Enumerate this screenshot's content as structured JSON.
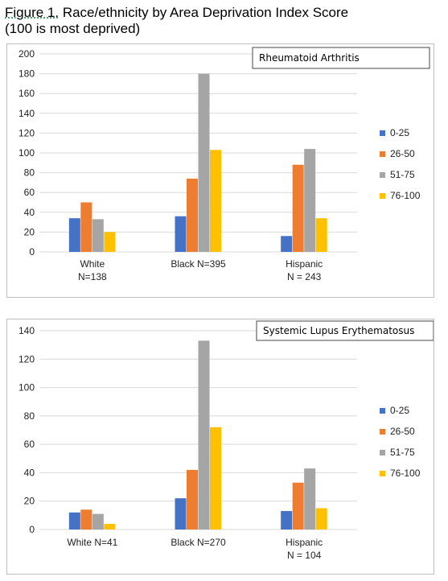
{
  "figure": {
    "title_prefix": "Figure 1.",
    "title_rest": " Race/ethnicity by Area Deprivation Index Score\n(100 is most deprived)"
  },
  "colors": {
    "0-25": "#4472c4",
    "26-50": "#ed7d31",
    "51-75": "#a5a5a5",
    "76-100": "#ffc000",
    "grid": "#d9d9d9"
  },
  "chart_data": [
    {
      "type": "bar",
      "title": "Rheumatoid Arthritis",
      "categories": [
        "White\nN=138",
        "Black N=395",
        "Hispanic\nN = 243"
      ],
      "series": [
        {
          "name": "0-25",
          "values": [
            34,
            36,
            16
          ]
        },
        {
          "name": "26-50",
          "values": [
            50,
            74,
            88
          ]
        },
        {
          "name": "51-75",
          "values": [
            33,
            180,
            104
          ]
        },
        {
          "name": "76-100",
          "values": [
            20,
            103,
            34
          ]
        }
      ],
      "ylim": [
        0,
        200
      ],
      "yticks": [
        0,
        20,
        40,
        60,
        80,
        100,
        120,
        140,
        160,
        180,
        200
      ],
      "grid": true,
      "legend": "right"
    },
    {
      "type": "bar",
      "title": "Systemic Lupus Erythematosus",
      "categories": [
        "White N=41",
        "Black N=270",
        "Hispanic\nN = 104"
      ],
      "series": [
        {
          "name": "0-25",
          "values": [
            12,
            22,
            13
          ]
        },
        {
          "name": "26-50",
          "values": [
            14,
            42,
            33
          ]
        },
        {
          "name": "51-75",
          "values": [
            11,
            133,
            43
          ]
        },
        {
          "name": "76-100",
          "values": [
            4,
            72,
            15
          ]
        }
      ],
      "ylim": [
        0,
        140
      ],
      "yticks": [
        0,
        20,
        40,
        60,
        80,
        100,
        120,
        140
      ],
      "grid": true,
      "legend": "right"
    }
  ]
}
